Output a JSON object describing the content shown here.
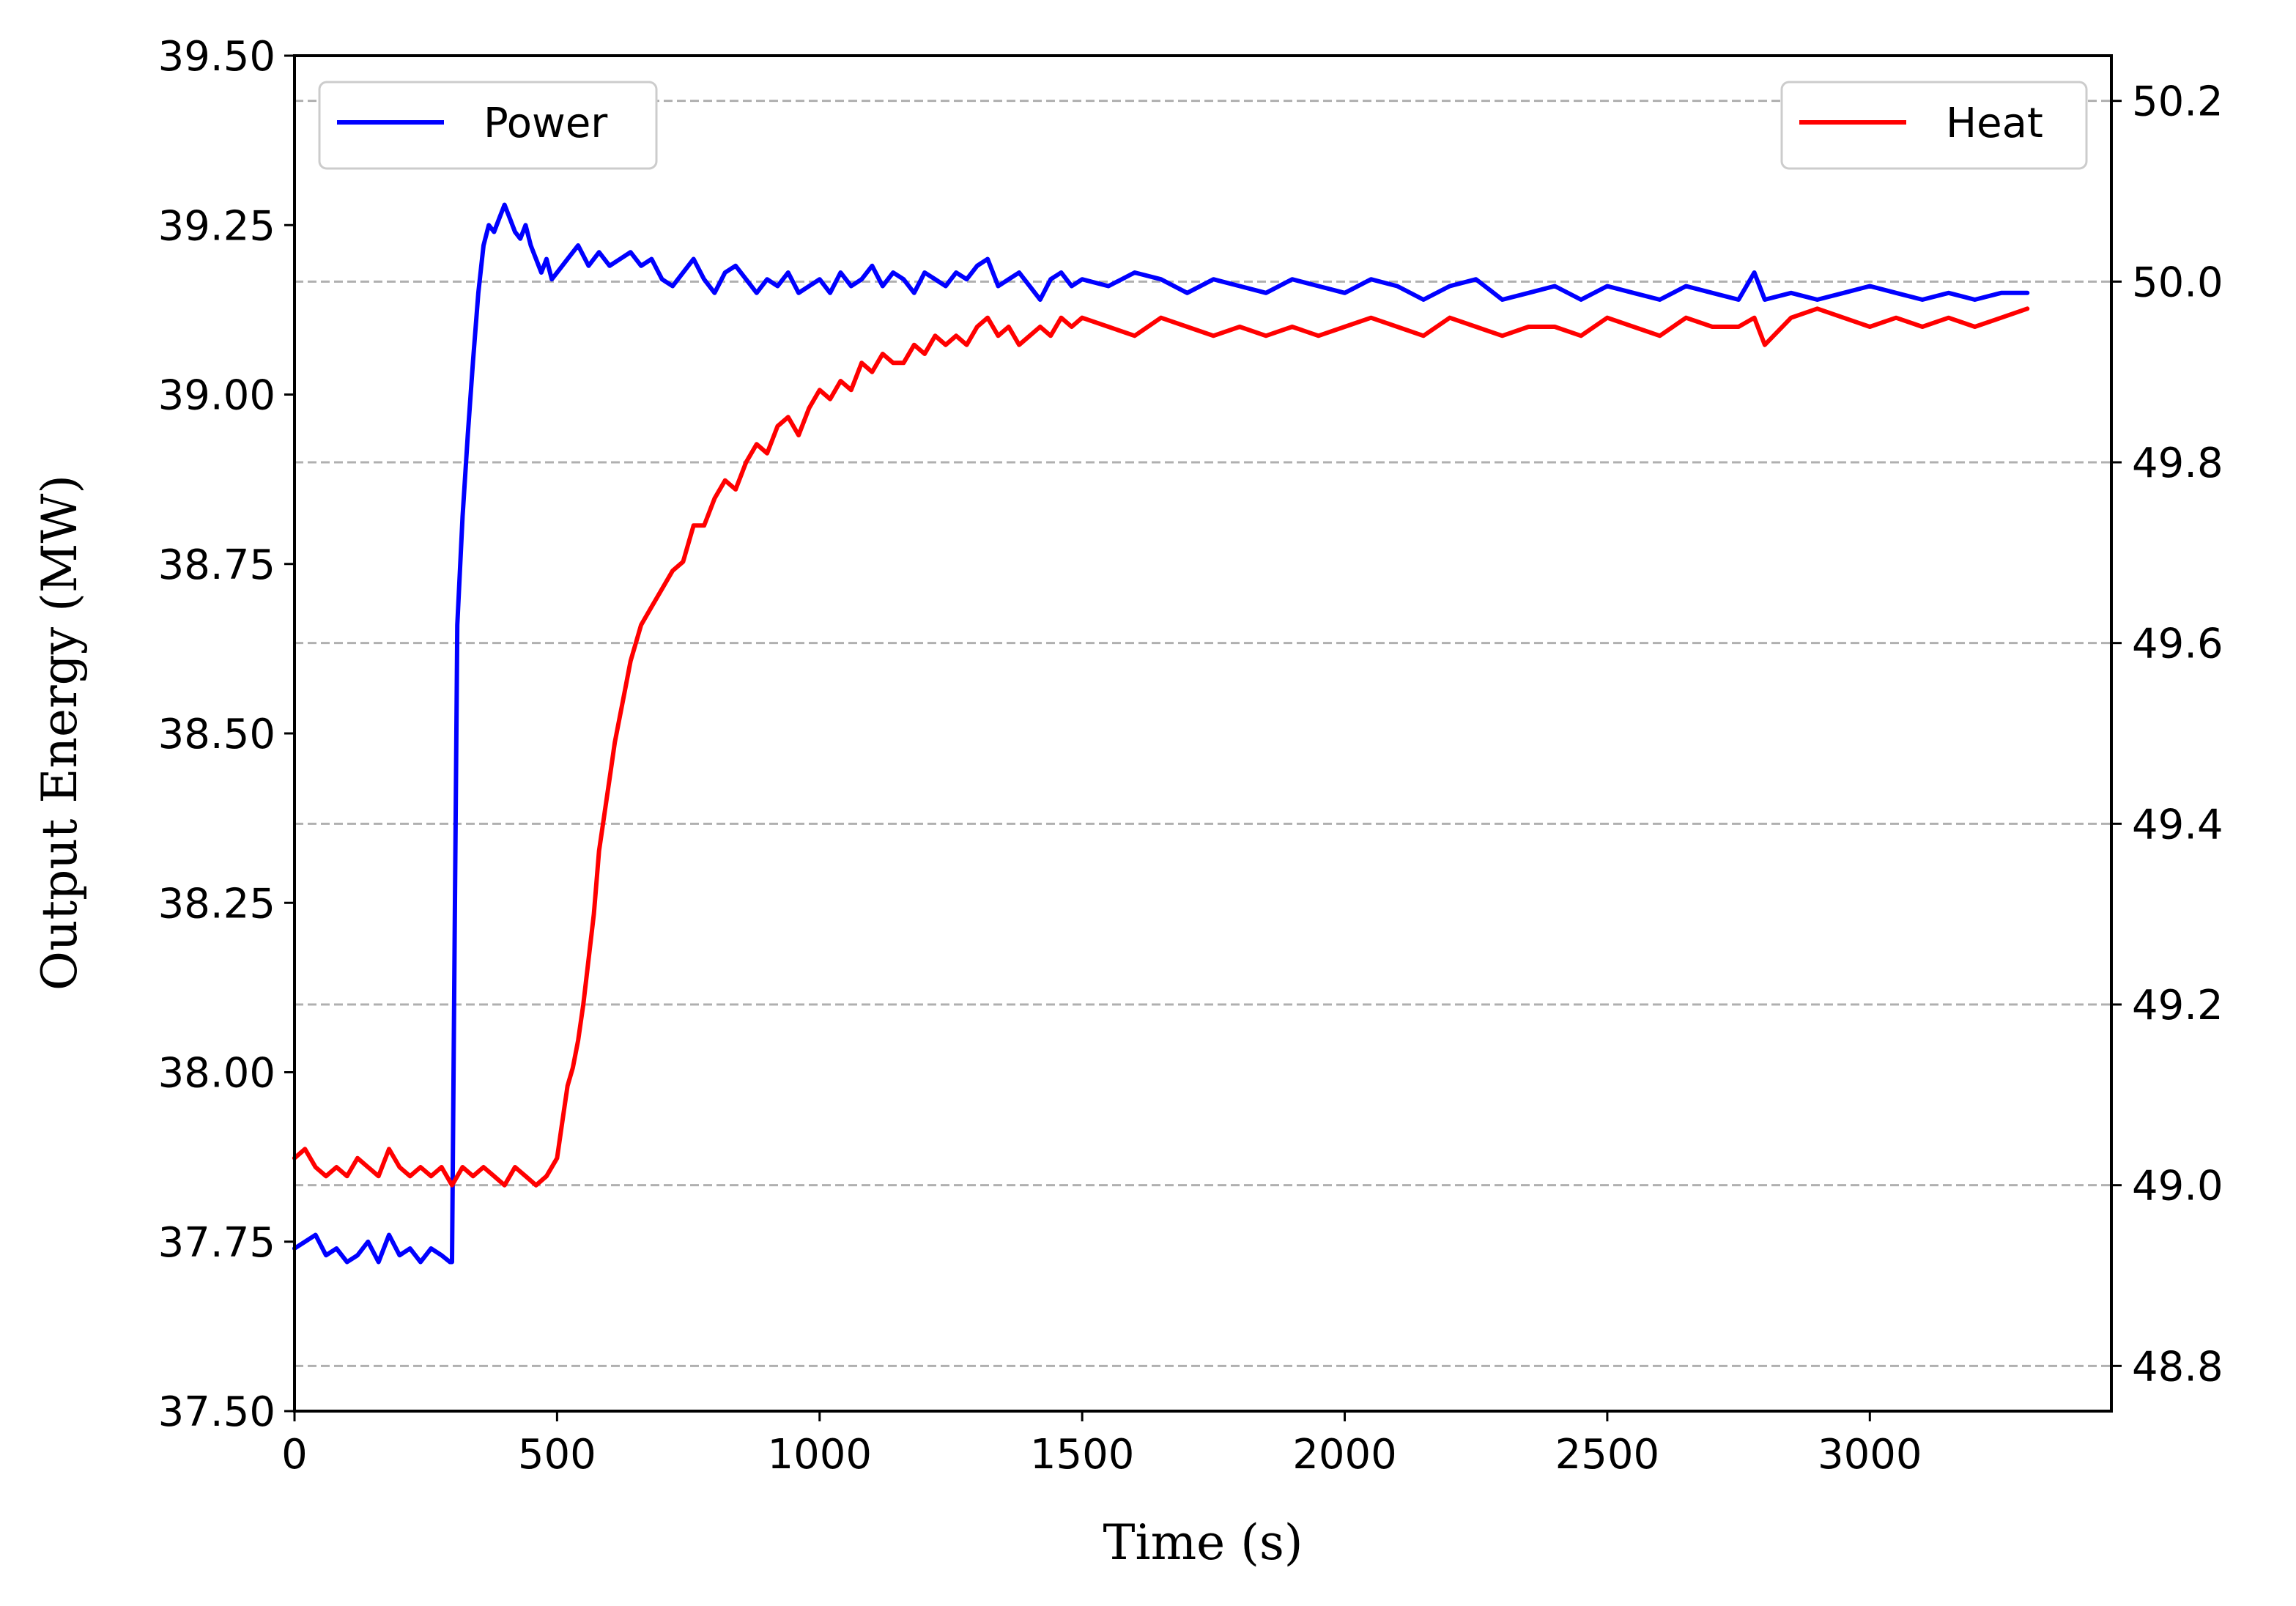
{
  "chart_data": {
    "type": "line",
    "title": "",
    "xlabel": "Time (s)",
    "ylabel": "Output Energy (MW)",
    "y2label": "",
    "xlim": [
      0,
      3460
    ],
    "ylim": [
      37.5,
      39.5
    ],
    "y2lim": [
      48.75,
      50.25
    ],
    "x_ticks": [
      "0",
      "500",
      "1000",
      "1500",
      "2000",
      "2500",
      "3000"
    ],
    "x_tick_values": [
      0,
      500,
      1000,
      1500,
      2000,
      2500,
      3000
    ],
    "y_ticks": [
      "37.50",
      "37.75",
      "38.00",
      "38.25",
      "38.50",
      "38.75",
      "39.00",
      "39.25",
      "39.50"
    ],
    "y_tick_values": [
      37.5,
      37.75,
      38.0,
      38.25,
      38.5,
      38.75,
      39.0,
      39.25,
      39.5
    ],
    "y2_ticks": [
      "48.8",
      "49.0",
      "49.2",
      "49.4",
      "49.6",
      "49.8",
      "50.0",
      "50.2"
    ],
    "y2_tick_values": [
      48.8,
      49.0,
      49.2,
      49.4,
      49.6,
      49.8,
      50.0,
      50.2
    ],
    "grid": "horizontal dashed, right axis ticks",
    "series": [
      {
        "name": "Power",
        "axis": "left",
        "color": "#0000ff",
        "legend_position": "top-left",
        "x": [
          0,
          20,
          40,
          60,
          80,
          100,
          120,
          140,
          160,
          180,
          200,
          220,
          240,
          260,
          280,
          296,
          300,
          305,
          310,
          320,
          330,
          340,
          350,
          360,
          370,
          380,
          390,
          400,
          410,
          420,
          430,
          440,
          450,
          460,
          470,
          480,
          490,
          500,
          520,
          540,
          560,
          580,
          600,
          620,
          640,
          660,
          680,
          700,
          720,
          740,
          760,
          780,
          800,
          820,
          840,
          860,
          880,
          900,
          920,
          940,
          960,
          980,
          1000,
          1020,
          1040,
          1060,
          1080,
          1100,
          1120,
          1140,
          1160,
          1180,
          1200,
          1220,
          1240,
          1260,
          1280,
          1300,
          1320,
          1340,
          1360,
          1380,
          1400,
          1420,
          1440,
          1460,
          1480,
          1500,
          1550,
          1600,
          1650,
          1700,
          1750,
          1800,
          1850,
          1900,
          1950,
          2000,
          2050,
          2100,
          2150,
          2200,
          2250,
          2300,
          2350,
          2400,
          2450,
          2500,
          2550,
          2600,
          2650,
          2700,
          2750,
          2780,
          2800,
          2850,
          2900,
          2950,
          3000,
          3050,
          3100,
          3150,
          3200,
          3250,
          3300
        ],
        "values": [
          37.74,
          37.75,
          37.76,
          37.73,
          37.74,
          37.72,
          37.73,
          37.75,
          37.72,
          37.76,
          37.73,
          37.74,
          37.72,
          37.74,
          37.73,
          37.72,
          37.72,
          38.2,
          38.66,
          38.82,
          38.94,
          39.05,
          39.15,
          39.22,
          39.25,
          39.24,
          39.26,
          39.28,
          39.26,
          39.24,
          39.23,
          39.25,
          39.22,
          39.2,
          39.18,
          39.2,
          39.17,
          39.18,
          39.2,
          39.22,
          39.19,
          39.21,
          39.19,
          39.2,
          39.21,
          39.19,
          39.2,
          39.17,
          39.16,
          39.18,
          39.2,
          39.17,
          39.15,
          39.18,
          39.19,
          39.17,
          39.15,
          39.17,
          39.16,
          39.18,
          39.15,
          39.16,
          39.17,
          39.15,
          39.18,
          39.16,
          39.17,
          39.19,
          39.16,
          39.18,
          39.17,
          39.15,
          39.18,
          39.17,
          39.16,
          39.18,
          39.17,
          39.19,
          39.2,
          39.16,
          39.17,
          39.18,
          39.16,
          39.14,
          39.17,
          39.18,
          39.16,
          39.17,
          39.16,
          39.18,
          39.17,
          39.15,
          39.17,
          39.16,
          39.15,
          39.17,
          39.16,
          39.15,
          39.17,
          39.16,
          39.14,
          39.16,
          39.17,
          39.14,
          39.15,
          39.16,
          39.14,
          39.16,
          39.15,
          39.14,
          39.16,
          39.15,
          39.14,
          39.18,
          39.14,
          39.15,
          39.14,
          39.15,
          39.16,
          39.15,
          39.14,
          39.15,
          39.14,
          39.15,
          39.15
        ]
      },
      {
        "name": "Heat",
        "axis": "right",
        "color": "#ff0000",
        "legend_position": "top-right",
        "x": [
          0,
          20,
          40,
          60,
          80,
          100,
          120,
          140,
          160,
          180,
          200,
          220,
          240,
          260,
          280,
          300,
          320,
          340,
          360,
          380,
          400,
          420,
          440,
          460,
          480,
          500,
          510,
          520,
          530,
          540,
          550,
          560,
          570,
          580,
          590,
          600,
          610,
          620,
          630,
          640,
          650,
          660,
          680,
          700,
          720,
          740,
          760,
          780,
          800,
          820,
          840,
          860,
          880,
          900,
          920,
          940,
          960,
          980,
          1000,
          1020,
          1040,
          1060,
          1080,
          1100,
          1120,
          1140,
          1160,
          1180,
          1200,
          1220,
          1240,
          1260,
          1280,
          1300,
          1320,
          1340,
          1360,
          1380,
          1400,
          1420,
          1440,
          1460,
          1480,
          1500,
          1550,
          1600,
          1650,
          1700,
          1750,
          1800,
          1850,
          1900,
          1950,
          2000,
          2050,
          2100,
          2150,
          2200,
          2250,
          2300,
          2350,
          2400,
          2450,
          2500,
          2550,
          2600,
          2650,
          2700,
          2750,
          2780,
          2800,
          2850,
          2900,
          2950,
          3000,
          3050,
          3100,
          3150,
          3200,
          3250,
          3300
        ],
        "values": [
          49.03,
          49.04,
          49.02,
          49.01,
          49.02,
          49.01,
          49.03,
          49.02,
          49.01,
          49.04,
          49.02,
          49.01,
          49.02,
          49.01,
          49.02,
          49.0,
          49.02,
          49.01,
          49.02,
          49.01,
          49.0,
          49.02,
          49.01,
          49.0,
          49.01,
          49.03,
          49.07,
          49.11,
          49.13,
          49.16,
          49.2,
          49.25,
          49.3,
          49.37,
          49.41,
          49.45,
          49.49,
          49.52,
          49.55,
          49.58,
          49.6,
          49.62,
          49.64,
          49.66,
          49.68,
          49.69,
          49.73,
          49.73,
          49.76,
          49.78,
          49.77,
          49.8,
          49.82,
          49.81,
          49.84,
          49.85,
          49.83,
          49.86,
          49.88,
          49.87,
          49.89,
          49.88,
          49.91,
          49.9,
          49.92,
          49.91,
          49.91,
          49.93,
          49.92,
          49.94,
          49.93,
          49.94,
          49.93,
          49.95,
          49.96,
          49.94,
          49.95,
          49.93,
          49.94,
          49.95,
          49.94,
          49.96,
          49.95,
          49.96,
          49.95,
          49.94,
          49.96,
          49.95,
          49.94,
          49.95,
          49.94,
          49.95,
          49.94,
          49.95,
          49.96,
          49.95,
          49.94,
          49.96,
          49.95,
          49.94,
          49.95,
          49.95,
          49.94,
          49.96,
          49.95,
          49.94,
          49.96,
          49.95,
          49.95,
          49.96,
          49.93,
          49.96,
          49.97,
          49.96,
          49.95,
          49.96,
          49.95,
          49.96,
          49.95,
          49.96,
          49.97
        ]
      }
    ]
  }
}
